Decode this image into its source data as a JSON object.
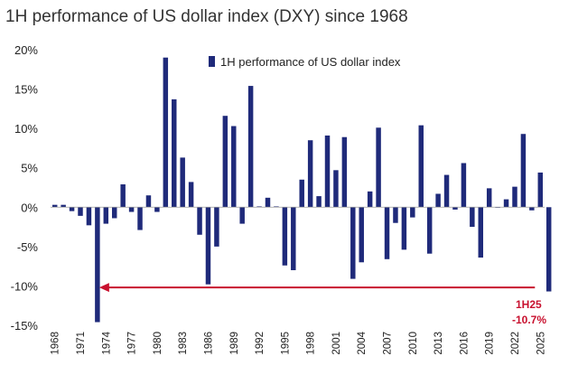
{
  "chart_data": {
    "type": "bar",
    "title": "1H performance of US dollar index (DXY) since 1968",
    "legend": "1H performance of US dollar index",
    "legend_position": "top",
    "ylim": [
      -15,
      20
    ],
    "yticks": [
      20,
      15,
      10,
      5,
      0,
      -5,
      -10,
      -15
    ],
    "ytick_labels": [
      "20%",
      "15%",
      "10%",
      "5%",
      "0%",
      "-5%",
      "-10%",
      "-15%"
    ],
    "xtick_labels": [
      "1968",
      "1971",
      "1974",
      "1977",
      "1980",
      "1983",
      "1986",
      "1989",
      "1992",
      "1995",
      "1998",
      "2001",
      "2004",
      "2007",
      "2010",
      "2013",
      "2016",
      "2019",
      "2022",
      "2025"
    ],
    "xtick_years": [
      1968,
      1971,
      1974,
      1977,
      1980,
      1983,
      1986,
      1989,
      1992,
      1995,
      1998,
      2001,
      2004,
      2007,
      2010,
      2013,
      2016,
      2019,
      2022,
      2025
    ],
    "x_start": 1968,
    "x_end": 2025,
    "series": [
      {
        "name": "1H performance of US dollar index",
        "color": "#1f2a7a",
        "values": [
          0.3,
          0.3,
          -0.5,
          -1.1,
          -2.3,
          -14.6,
          -2.1,
          -1.4,
          2.9,
          -0.6,
          -2.9,
          1.5,
          -0.6,
          19.0,
          13.7,
          6.3,
          3.2,
          -3.5,
          -9.8,
          -5.0,
          11.6,
          10.3,
          -2.1,
          15.4,
          0.1,
          1.2,
          0.1,
          -7.4,
          -8.0,
          3.5,
          8.5,
          1.4,
          9.1,
          4.7,
          8.9,
          -9.1,
          -7.0,
          2.0,
          10.1,
          -6.6,
          -2.0,
          -5.4,
          -1.3,
          10.4,
          -5.9,
          1.7,
          4.1,
          -0.3,
          5.6,
          -2.5,
          -6.4,
          2.4,
          0.0,
          1.0,
          2.6,
          9.3,
          -0.4,
          4.4,
          -10.7
        ]
      }
    ],
    "annotation": {
      "label_line1": "1H25",
      "label_line2": "-10.7%",
      "arrow_from_year": 2025,
      "arrow_to_year": 1973,
      "arrow_level": -10.2,
      "color": "#c8102e"
    }
  }
}
